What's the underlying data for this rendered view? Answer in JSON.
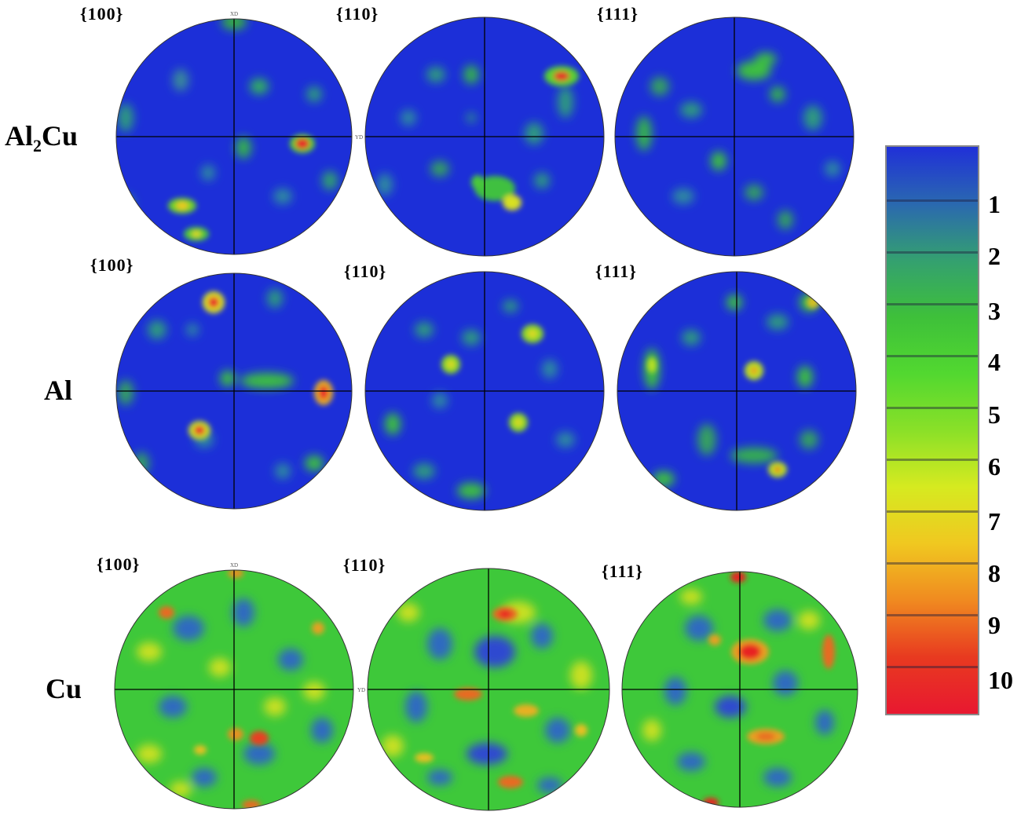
{
  "figure": {
    "rows": [
      {
        "id": "al2cu",
        "label": {
          "base": "Al",
          "sub": "2",
          "rest": "Cu"
        },
        "planes": [
          "{100}",
          "{110}",
          "{111}"
        ],
        "background": "mostly-blue"
      },
      {
        "id": "al",
        "label": {
          "base": "Al",
          "sub": "",
          "rest": ""
        },
        "planes": [
          "{100}",
          "{110}",
          "{111}"
        ],
        "background": "mostly-blue"
      },
      {
        "id": "cu",
        "label": {
          "base": "Cu",
          "sub": "",
          "rest": ""
        },
        "planes": [
          "{100}",
          "{110}",
          "{111}"
        ],
        "background": "green-yellow"
      }
    ],
    "axis_marks": {
      "top": "XD",
      "right": "YD"
    }
  },
  "colorbar": {
    "ticks": [
      "1",
      "2",
      "3",
      "4",
      "5",
      "6",
      "7",
      "8",
      "9",
      "10"
    ],
    "colors": [
      "#2030d8",
      "#2a68b0",
      "#34a070",
      "#3ec03a",
      "#52d830",
      "#8ae028",
      "#d6ea20",
      "#f0c820",
      "#f08a20",
      "#e83a20",
      "#e81830"
    ]
  },
  "colors": {
    "low": "#1a2ed6",
    "mid": "#3fd23f",
    "high": "#f5e51e",
    "peak": "#e8202a",
    "crosshair": "#000000"
  }
}
